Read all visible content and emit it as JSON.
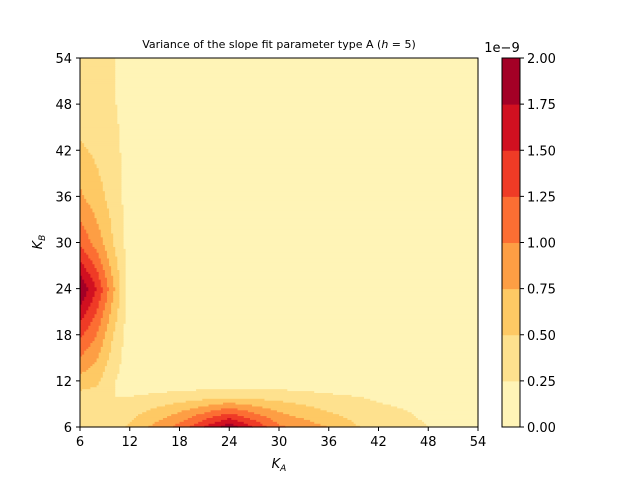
{
  "chart_data": {
    "type": "contourf",
    "title_prefix": "Variance of the slope fit parameter type A (",
    "title_var": "h",
    "title_suffix": " = 5)",
    "xlabel_main": "K",
    "xlabel_sub": "A",
    "ylabel_main": "K",
    "ylabel_sub": "B",
    "xlim": [
      6,
      54
    ],
    "ylim": [
      6,
      54
    ],
    "xticks": [
      "6",
      "12",
      "18",
      "24",
      "30",
      "36",
      "42",
      "48",
      "54"
    ],
    "yticks": [
      "6",
      "12",
      "18",
      "24",
      "30",
      "36",
      "42",
      "48",
      "54"
    ],
    "x": [
      6,
      8,
      10,
      12,
      18,
      24,
      30,
      36,
      42,
      48,
      54
    ],
    "y": [
      6,
      8,
      10,
      12,
      18,
      24,
      30,
      36,
      42,
      48,
      54
    ],
    "z_scale_label": "1e−9",
    "z": [
      [
        0.45,
        0.42,
        0.35,
        0.55,
        1.1,
        1.95,
        1.05,
        0.75,
        0.35,
        0.25,
        0.18
      ],
      [
        0.42,
        0.4,
        0.3,
        0.4,
        0.75,
        1.2,
        0.75,
        0.5,
        0.3,
        0.22,
        0.15
      ],
      [
        0.4,
        0.38,
        0.25,
        0.25,
        0.35,
        0.45,
        0.4,
        0.3,
        0.22,
        0.18,
        0.12
      ],
      [
        0.65,
        0.55,
        0.28,
        0.1,
        0.08,
        0.08,
        0.08,
        0.07,
        0.06,
        0.05,
        0.04
      ],
      [
        1.3,
        1.0,
        0.5,
        0.1,
        0.05,
        0.05,
        0.05,
        0.05,
        0.04,
        0.04,
        0.03
      ],
      [
        2.0,
        1.5,
        0.8,
        0.12,
        0.05,
        0.05,
        0.05,
        0.04,
        0.04,
        0.03,
        0.03
      ],
      [
        1.2,
        0.9,
        0.5,
        0.12,
        0.05,
        0.04,
        0.04,
        0.04,
        0.03,
        0.03,
        0.03
      ],
      [
        0.8,
        0.6,
        0.4,
        0.12,
        0.04,
        0.04,
        0.04,
        0.03,
        0.03,
        0.03,
        0.03
      ],
      [
        0.55,
        0.45,
        0.35,
        0.12,
        0.04,
        0.04,
        0.03,
        0.03,
        0.03,
        0.03,
        0.03
      ],
      [
        0.35,
        0.3,
        0.28,
        0.12,
        0.04,
        0.03,
        0.03,
        0.03,
        0.03,
        0.03,
        0.03
      ],
      [
        0.3,
        0.28,
        0.26,
        0.12,
        0.04,
        0.03,
        0.03,
        0.03,
        0.03,
        0.03,
        0.03
      ]
    ],
    "levels": [
      0.0,
      0.25,
      0.5,
      0.75,
      1.0,
      1.25,
      1.5,
      1.75,
      2.0
    ],
    "level_labels": [
      "0.00",
      "0.25",
      "0.50",
      "0.75",
      "1.00",
      "1.25",
      "1.50",
      "1.75",
      "2.00"
    ],
    "level_colors": [
      "#fff4b7",
      "#fee18e",
      "#fec964",
      "#fd9e44",
      "#fc6e33",
      "#ef3b26",
      "#d11020",
      "#a30026"
    ],
    "colormap": "YlOrRd",
    "legend": "colorbar-right",
    "grid": false
  }
}
